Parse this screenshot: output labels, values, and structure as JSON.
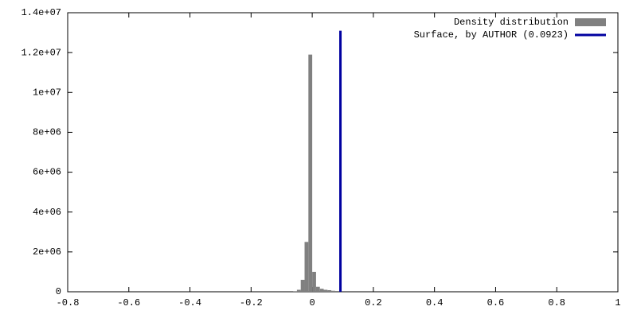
{
  "chart_data": {
    "type": "histogram",
    "bins": [
      -0.0625,
      -0.05,
      -0.0375,
      -0.025,
      -0.0125,
      0,
      0.0125,
      0.025,
      0.0375,
      0.05,
      0.0625,
      0.075
    ],
    "series": [
      {
        "name": "Density distribution",
        "color": "#808080",
        "values": [
          30000,
          100000,
          600000,
          2500000,
          11900000,
          1000000,
          250000,
          150000,
          100000,
          80000,
          50000
        ]
      },
      {
        "name": "Surface, by AUTHOR (0.0923)",
        "color": "#0000a0",
        "x": [
          0.0923,
          0.0923
        ],
        "values": [
          0,
          13100000
        ]
      }
    ],
    "xlim": [
      -0.8,
      1
    ],
    "xticks": [
      -0.8,
      -0.6,
      -0.4,
      -0.2,
      0,
      0.2,
      0.4,
      0.6,
      0.8,
      1
    ],
    "ylim": [
      0,
      14000000
    ],
    "yticks": [
      0,
      {
        "value": 2000000,
        "label": "2e+06"
      },
      {
        "value": 4000000,
        "label": "4e+06"
      },
      {
        "value": 6000000,
        "label": "6e+06"
      },
      {
        "value": 8000000,
        "label": "8e+06"
      },
      {
        "value": 10000000,
        "label": "1e+07"
      },
      {
        "value": 12000000,
        "label": "1.2e+07"
      },
      {
        "value": 14000000,
        "label": "1.4e+07"
      }
    ],
    "legend": "top-right"
  }
}
